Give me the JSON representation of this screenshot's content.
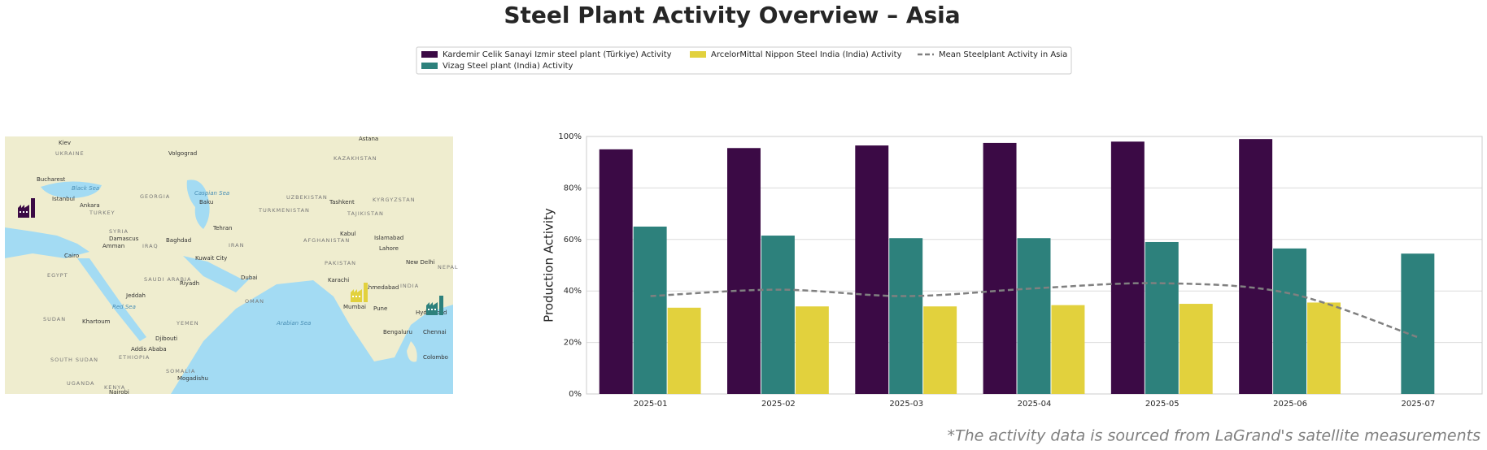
{
  "chart_data": {
    "type": "bar",
    "title": "Steel Plant Activity Overview – Asia",
    "ylabel": "Production Activity",
    "footnote": "*The activity data is sourced from LaGrand's satellite measurements",
    "categories": [
      "2025-01",
      "2025-02",
      "2025-03",
      "2025-04",
      "2025-05",
      "2025-06",
      "2025-07"
    ],
    "series": [
      {
        "name": "Kardemir Celik Sanayi Izmir steel plant (Türkiye) Activity",
        "color": "#3b0a45",
        "values": [
          95,
          95.5,
          96.5,
          97.5,
          98,
          99,
          null
        ]
      },
      {
        "name": "Vizag Steel plant (India) Activity",
        "color": "#2d817c",
        "values": [
          65,
          61.5,
          60.5,
          60.5,
          59,
          56.5,
          54.5
        ]
      },
      {
        "name": "ArcelorMittal Nippon Steel India (India) Activity",
        "color": "#e2d13d",
        "values": [
          33.5,
          34,
          34,
          34.5,
          35,
          35.5,
          null
        ]
      },
      {
        "name": "Mean Steelplant Activity in Asia",
        "type": "line",
        "color": "#808080",
        "dashed": true,
        "values": [
          38,
          40.5,
          38,
          41,
          43,
          39,
          22
        ]
      }
    ],
    "ylim": [
      0,
      100
    ],
    "yticks": [
      {
        "value": 0,
        "label": "0%"
      },
      {
        "value": 20,
        "label": "20%"
      },
      {
        "value": 40,
        "label": "40%"
      },
      {
        "value": 60,
        "label": "60%"
      },
      {
        "value": 80,
        "label": "80%"
      },
      {
        "value": 100,
        "label": "100%"
      }
    ],
    "grid": true,
    "legend": "top",
    "map_labels": [
      "Kiev",
      "Volgograd",
      "Astana",
      "UKRAINE",
      "KAZAKHSTAN",
      "Bucharest",
      "Black Sea",
      "GEORGIA",
      "UZBEKISTAN",
      "KYRGYZSTAN",
      "Istanbul",
      "Ankara",
      "TURKEY",
      "Baku",
      "Caspian Sea",
      "TURKMENISTAN",
      "Tashkent",
      "TAJIKISTAN",
      "SYRIA",
      "Damascus",
      "Amman",
      "IRAQ",
      "Baghdad",
      "Tehran",
      "IRAN",
      "AFGHANISTAN",
      "Kabul",
      "Islamabad",
      "Lahore",
      "New Delhi",
      "NEPAL",
      "Cairo",
      "EGYPT",
      "Kuwait City",
      "PAKISTAN",
      "Karachi",
      "SAUDI ARABIA",
      "Riyadh",
      "Dubai",
      "Ahmedabad",
      "INDIA",
      "OMAN",
      "Jeddah",
      "Red Sea",
      "Mumbai",
      "Pune",
      "Hyderabad",
      "SUDAN",
      "Khartoum",
      "YEMEN",
      "Arabian Sea",
      "Chennai",
      "Bengaluru",
      "Djibouti",
      "Addis Ababa",
      "ETHIOPIA",
      "SOUTH SUDAN",
      "SOMALIA",
      "Mogadishu",
      "Colombo",
      "UGANDA",
      "KENYA",
      "Nairobi"
    ]
  }
}
